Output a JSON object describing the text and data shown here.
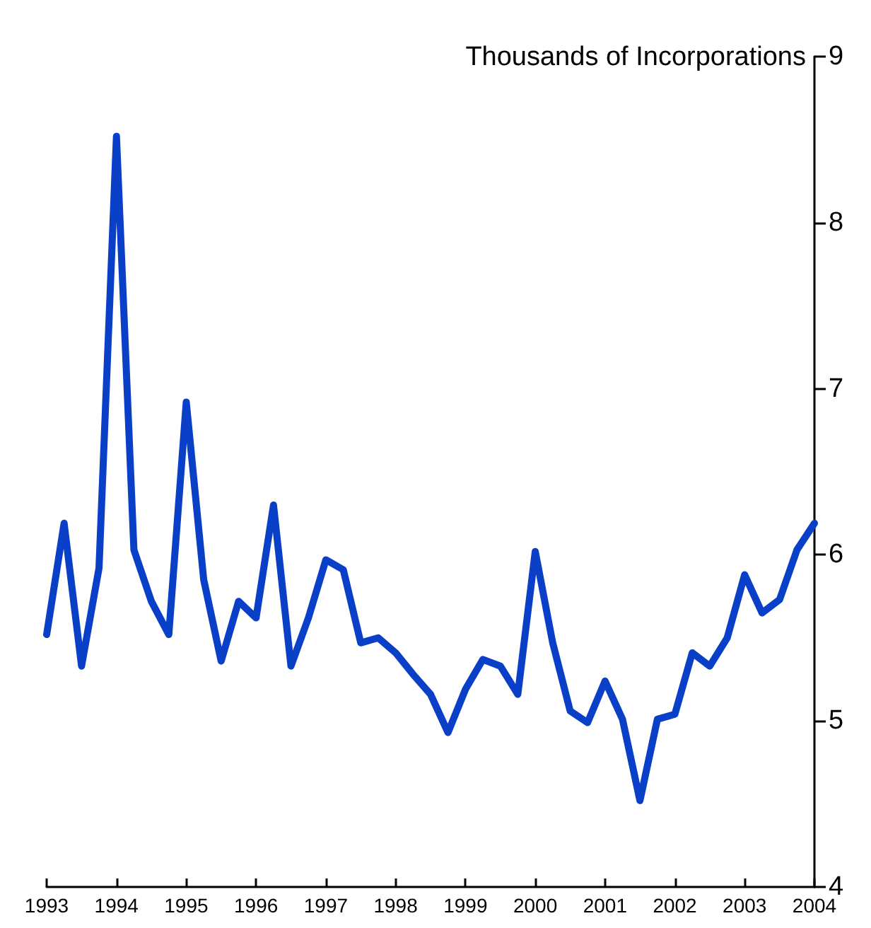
{
  "chart_data": {
    "type": "line",
    "ylabel": "Thousands of Incorporations",
    "x": [
      1993,
      1993.25,
      1993.5,
      1993.75,
      1994,
      1994.25,
      1994.5,
      1994.75,
      1995,
      1995.25,
      1995.5,
      1995.75,
      1996,
      1996.25,
      1996.5,
      1996.75,
      1997,
      1997.25,
      1997.5,
      1997.75,
      1998,
      1998.25,
      1998.5,
      1998.75,
      1999,
      1999.25,
      1999.5,
      1999.75,
      2000,
      2000.25,
      2000.5,
      2000.75,
      2001,
      2001.25,
      2001.5,
      2001.75,
      2002,
      2002.25,
      2002.5,
      2002.75,
      2003,
      2003.25,
      2003.5,
      2003.75,
      2004
    ],
    "series": [
      {
        "color": "#0a3fc8",
        "values": [
          5.52,
          6.19,
          5.33,
          5.92,
          8.52,
          6.03,
          5.72,
          5.52,
          6.92,
          5.85,
          5.36,
          5.72,
          5.62,
          6.3,
          5.33,
          5.62,
          5.97,
          5.91,
          5.47,
          5.5,
          5.41,
          5.28,
          5.16,
          4.93,
          5.19,
          5.37,
          5.33,
          5.16,
          6.02,
          5.47,
          5.06,
          4.99,
          5.24,
          5.01,
          4.52,
          5.01,
          5.04,
          5.41,
          5.33,
          5.5,
          5.88,
          5.65,
          5.73,
          6.03,
          6.19
        ]
      }
    ],
    "xlim": [
      1993,
      2004
    ],
    "xticks": [
      1993,
      1994,
      1995,
      1996,
      1997,
      1998,
      1999,
      2000,
      2001,
      2002,
      2003,
      2004
    ],
    "ylim": [
      4,
      9
    ],
    "yticks": [
      4,
      5,
      6,
      7,
      8,
      9
    ],
    "grid": false,
    "marker": "none",
    "line_style": "solid"
  }
}
